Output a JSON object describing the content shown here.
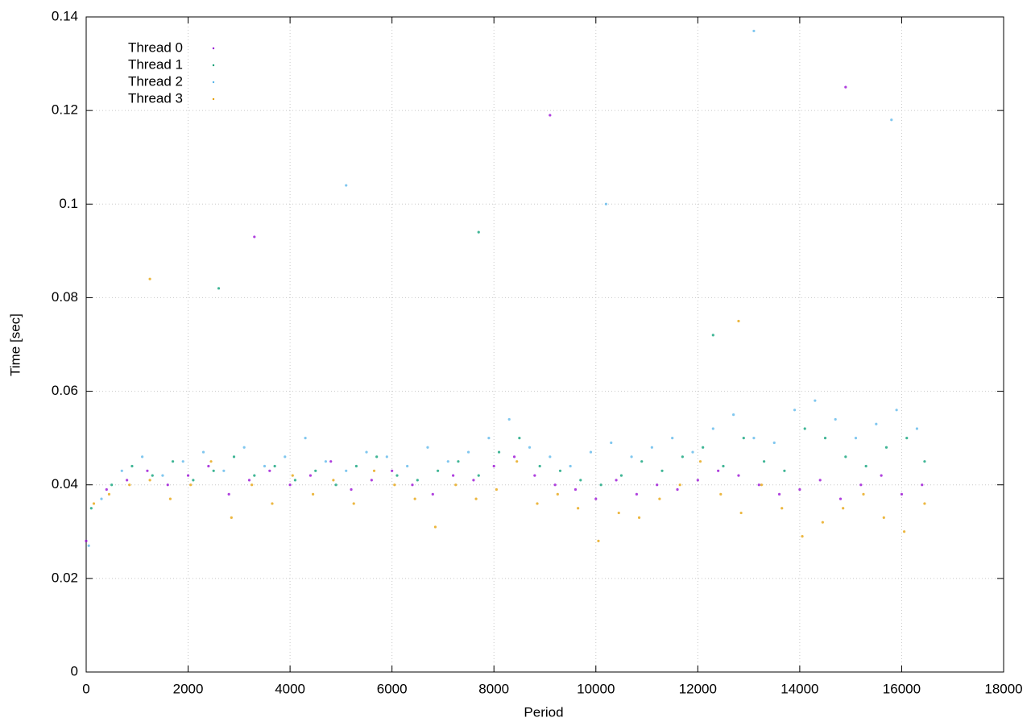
{
  "chart_data": {
    "type": "scatter",
    "x_label": "Period",
    "y_label": "Time [sec]",
    "xlim": [
      0,
      18000
    ],
    "ylim": [
      0,
      0.14
    ],
    "xticks": [
      0,
      2000,
      4000,
      6000,
      8000,
      10000,
      12000,
      14000,
      16000,
      18000
    ],
    "yticks": [
      0,
      0.02,
      0.04,
      0.06,
      0.08,
      0.1,
      0.12,
      0.14
    ],
    "grid": true,
    "legend": "top-left",
    "series": [
      {
        "name": "Thread 0",
        "color": "#9400d3",
        "x": [
          0,
          400,
          800,
          1200,
          1600,
          2000,
          2400,
          2800,
          3200,
          3600,
          4000,
          4400,
          4800,
          5200,
          5600,
          6000,
          6400,
          6800,
          7200,
          7600,
          8000,
          8400,
          8800,
          9200,
          9600,
          10000,
          10400,
          10800,
          11200,
          11600,
          12000,
          12400,
          12800,
          13200,
          13600,
          14000,
          14400,
          14800,
          15200,
          15600,
          16000,
          16400,
          3300,
          9100,
          14900
        ],
        "values": [
          0.028,
          0.039,
          0.041,
          0.043,
          0.04,
          0.042,
          0.044,
          0.038,
          0.041,
          0.043,
          0.04,
          0.042,
          0.045,
          0.039,
          0.041,
          0.043,
          0.04,
          0.038,
          0.042,
          0.041,
          0.044,
          0.046,
          0.042,
          0.04,
          0.039,
          0.037,
          0.041,
          0.038,
          0.04,
          0.039,
          0.041,
          0.043,
          0.042,
          0.04,
          0.038,
          0.039,
          0.041,
          0.037,
          0.04,
          0.042,
          0.038,
          0.04,
          0.093,
          0.119,
          0.125
        ]
      },
      {
        "name": "Thread 1",
        "color": "#009e73",
        "x": [
          100,
          500,
          900,
          1300,
          1700,
          2100,
          2500,
          2900,
          3300,
          3700,
          4100,
          4500,
          4900,
          5300,
          5700,
          6100,
          6500,
          6900,
          7300,
          7700,
          8100,
          8500,
          8900,
          9300,
          9700,
          10100,
          10500,
          10900,
          11300,
          11700,
          12100,
          12500,
          12900,
          13300,
          13700,
          14100,
          14500,
          14900,
          15300,
          15700,
          16100,
          16450,
          2600,
          7700,
          12300
        ],
        "values": [
          0.035,
          0.04,
          0.044,
          0.042,
          0.045,
          0.041,
          0.043,
          0.046,
          0.042,
          0.044,
          0.041,
          0.043,
          0.04,
          0.044,
          0.046,
          0.042,
          0.041,
          0.043,
          0.045,
          0.042,
          0.047,
          0.05,
          0.044,
          0.043,
          0.041,
          0.04,
          0.042,
          0.045,
          0.043,
          0.046,
          0.048,
          0.044,
          0.05,
          0.045,
          0.043,
          0.052,
          0.05,
          0.046,
          0.044,
          0.048,
          0.05,
          0.045,
          0.082,
          0.094,
          0.072
        ]
      },
      {
        "name": "Thread 2",
        "color": "#56b4e9",
        "x": [
          50,
          300,
          700,
          1100,
          1500,
          1900,
          2300,
          2700,
          3100,
          3500,
          3900,
          4300,
          4700,
          5100,
          5500,
          5900,
          6300,
          6700,
          7100,
          7500,
          7900,
          8300,
          8700,
          9100,
          9500,
          9900,
          10300,
          10700,
          11100,
          11500,
          11900,
          12300,
          12700,
          13100,
          13500,
          13900,
          14300,
          14700,
          15100,
          15500,
          15900,
          16300,
          5100,
          10200,
          13100,
          15800
        ],
        "values": [
          0.027,
          0.037,
          0.043,
          0.046,
          0.042,
          0.045,
          0.047,
          0.043,
          0.048,
          0.044,
          0.046,
          0.05,
          0.045,
          0.043,
          0.047,
          0.046,
          0.044,
          0.048,
          0.045,
          0.047,
          0.05,
          0.054,
          0.048,
          0.046,
          0.044,
          0.047,
          0.049,
          0.046,
          0.048,
          0.05,
          0.047,
          0.052,
          0.055,
          0.05,
          0.049,
          0.056,
          0.058,
          0.054,
          0.05,
          0.053,
          0.056,
          0.052,
          0.104,
          0.1,
          0.137,
          0.118
        ]
      },
      {
        "name": "Thread 3",
        "color": "#e69f00",
        "x": [
          150,
          450,
          850,
          1250,
          1650,
          2050,
          2450,
          2850,
          3250,
          3650,
          4050,
          4450,
          4850,
          5250,
          5650,
          6050,
          6450,
          6850,
          7250,
          7650,
          8050,
          8450,
          8850,
          9250,
          9650,
          10050,
          10450,
          10850,
          11250,
          11650,
          12050,
          12450,
          12850,
          13250,
          13650,
          14050,
          14450,
          14850,
          15250,
          15650,
          16050,
          16450,
          1250,
          12800
        ],
        "values": [
          0.036,
          0.038,
          0.04,
          0.041,
          0.037,
          0.04,
          0.045,
          0.033,
          0.04,
          0.036,
          0.042,
          0.038,
          0.041,
          0.036,
          0.043,
          0.04,
          0.037,
          0.031,
          0.04,
          0.037,
          0.039,
          0.045,
          0.036,
          0.038,
          0.035,
          0.028,
          0.034,
          0.033,
          0.037,
          0.04,
          0.045,
          0.038,
          0.034,
          0.04,
          0.035,
          0.029,
          0.032,
          0.035,
          0.038,
          0.033,
          0.03,
          0.036,
          0.084,
          0.075
        ]
      }
    ]
  }
}
